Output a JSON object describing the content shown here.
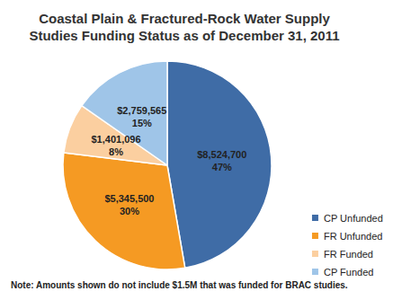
{
  "chart_data": {
    "type": "pie",
    "title": "Coastal Plain & Fractured-Rock Water Supply\nStudies Funding Status as of December 31, 2011",
    "categories": [
      "CP Unfunded",
      "FR Unfunded",
      "FR Funded",
      "CP Funded"
    ],
    "values": [
      8524700,
      5345500,
      1401096,
      2759565
    ],
    "value_labels": [
      "$8,524,700",
      "$5,345,500",
      "$1,401,096",
      "$2,759,565"
    ],
    "percent_labels": [
      "47%",
      "30%",
      "8%",
      "15%"
    ],
    "colors": [
      "#3f6ca6",
      "#f59a23",
      "#fbcfa0",
      "#9fc5e8"
    ],
    "data_labels": true,
    "legend": "right",
    "annotation": "Note: Amounts shown do not include $1.5M that was funded for BRAC studies."
  }
}
